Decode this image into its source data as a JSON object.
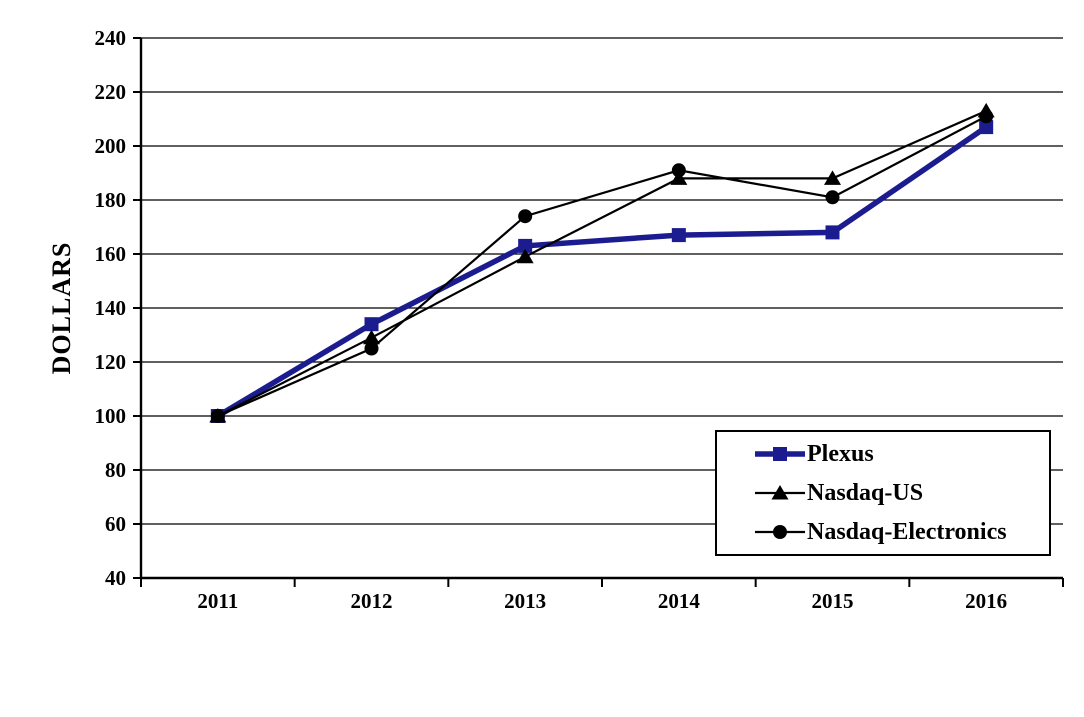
{
  "chart_data": {
    "type": "line",
    "title": "",
    "xlabel": "",
    "ylabel": "DOLLARS",
    "ylim": [
      40,
      240
    ],
    "ytick_step": 20,
    "yticks": [
      240,
      220,
      200,
      180,
      160,
      140,
      120,
      100,
      80,
      60,
      40
    ],
    "grid": true,
    "legend_position": "inside-bottom-right",
    "categories": [
      "2011",
      "2012",
      "2013",
      "2014",
      "2015",
      "2016"
    ],
    "series": [
      {
        "name": "Plexus",
        "marker": "square",
        "color": "#1c1c91",
        "line_width": 5.5,
        "values": [
          100,
          134,
          163,
          167,
          168,
          207
        ]
      },
      {
        "name": "Nasdaq-US",
        "marker": "triangle",
        "color": "#000000",
        "line_width": 2.2,
        "values": [
          100,
          129,
          159,
          188,
          188,
          213
        ]
      },
      {
        "name": "Nasdaq-Electronics",
        "marker": "circle",
        "color": "#000000",
        "line_width": 2.2,
        "values": [
          100,
          125,
          174,
          191,
          181,
          211
        ]
      }
    ]
  },
  "colors": {
    "axis": "#000000",
    "grid": "#000000",
    "text": "#000000",
    "background": "#ffffff"
  }
}
